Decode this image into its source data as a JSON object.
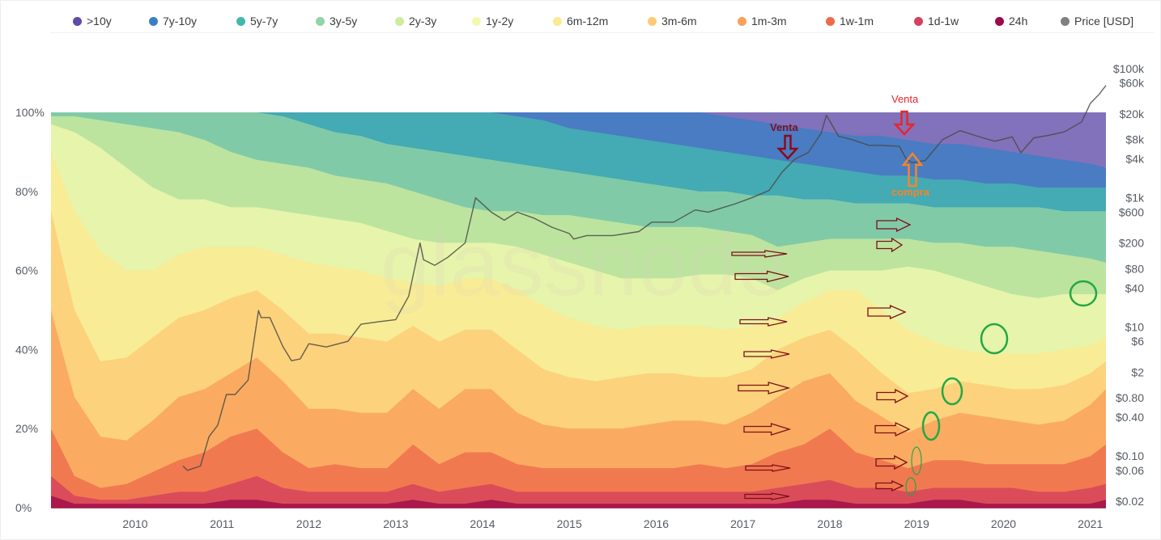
{
  "legend": [
    {
      "label": ">10y",
      "color": "#5d4aa8"
    },
    {
      "label": "7y-10y",
      "color": "#3a7fc4"
    },
    {
      "label": "5y-7y",
      "color": "#42b7ae"
    },
    {
      "label": "3y-5y",
      "color": "#92d4a4"
    },
    {
      "label": "2y-3y",
      "color": "#cdec9c"
    },
    {
      "label": "1y-2y",
      "color": "#f3f8b0"
    },
    {
      "label": "6m-12m",
      "color": "#fde98f"
    },
    {
      "label": "3m-6m",
      "color": "#fccb74"
    },
    {
      "label": "1m-3m",
      "color": "#f9a05a"
    },
    {
      "label": "1w-1m",
      "color": "#ee6a4c"
    },
    {
      "label": "1d-1w",
      "color": "#d5405e"
    },
    {
      "label": "24h",
      "color": "#9c0a48"
    },
    {
      "label": "Price [USD]",
      "color": "#808080"
    }
  ],
  "watermark": "glassnode",
  "chart_data": {
    "type": "area",
    "title": "",
    "xlabel": "",
    "ylabel": "",
    "stacked": true,
    "x_range": [
      2009.03,
      2021.18
    ],
    "y_range_percent": [
      0,
      100
    ],
    "y_ticks": [
      "0%",
      "20%",
      "40%",
      "60%",
      "80%",
      "100%"
    ],
    "x_ticks": [
      "2010",
      "2011",
      "2012",
      "2013",
      "2014",
      "2015",
      "2016",
      "2017",
      "2018",
      "2019",
      "2020",
      "2021"
    ],
    "price_axis": {
      "scale": "log",
      "range_usd": [
        0.02,
        100000
      ],
      "ticks": [
        "$100k",
        "$60k",
        "$20k",
        "$8k",
        "$4k",
        "$1k",
        "$600",
        "$200",
        "$80",
        "$40",
        "$10",
        "$6",
        "$2",
        "$0.80",
        "$0.40",
        "$0.10",
        "$0.06",
        "$0.02"
      ]
    },
    "x": [
      2009.03,
      2009.3,
      2009.6,
      2009.9,
      2010.2,
      2010.5,
      2010.8,
      2011.1,
      2011.4,
      2011.7,
      2012.0,
      2012.3,
      2012.6,
      2012.9,
      2013.2,
      2013.5,
      2013.8,
      2014.1,
      2014.4,
      2014.7,
      2015.0,
      2015.3,
      2015.6,
      2015.9,
      2016.2,
      2016.5,
      2016.8,
      2017.1,
      2017.4,
      2017.7,
      2018.0,
      2018.3,
      2018.6,
      2018.9,
      2019.2,
      2019.5,
      2019.8,
      2020.1,
      2020.4,
      2020.7,
      2021.0,
      2021.18
    ],
    "series_cumulative_top_percent": [
      {
        "name": "24h",
        "values": [
          3,
          1,
          1,
          1,
          1,
          1,
          1,
          2,
          2,
          1,
          1,
          1,
          1,
          1,
          2,
          1,
          1,
          2,
          1,
          1,
          1,
          1,
          1,
          1,
          1,
          1,
          1,
          1,
          1,
          2,
          2,
          1,
          1,
          1,
          2,
          2,
          1,
          1,
          1,
          1,
          1,
          2
        ]
      },
      {
        "name": "1d-1w",
        "values": [
          8,
          3,
          2,
          2,
          3,
          4,
          4,
          6,
          8,
          5,
          4,
          4,
          4,
          4,
          6,
          4,
          5,
          6,
          4,
          4,
          4,
          4,
          4,
          4,
          4,
          4,
          4,
          4,
          5,
          6,
          7,
          5,
          5,
          4,
          5,
          5,
          5,
          5,
          4,
          4,
          5,
          6
        ]
      },
      {
        "name": "1w-1m",
        "values": [
          20,
          8,
          5,
          6,
          9,
          12,
          14,
          18,
          20,
          14,
          10,
          11,
          10,
          10,
          16,
          11,
          14,
          14,
          11,
          10,
          10,
          10,
          10,
          10,
          10,
          11,
          10,
          11,
          14,
          16,
          20,
          14,
          12,
          10,
          12,
          12,
          11,
          11,
          11,
          11,
          13,
          16
        ]
      },
      {
        "name": "1m-3m",
        "values": [
          50,
          28,
          18,
          17,
          22,
          28,
          30,
          34,
          38,
          32,
          25,
          25,
          24,
          24,
          30,
          25,
          30,
          30,
          24,
          21,
          20,
          20,
          20,
          21,
          22,
          22,
          21,
          24,
          28,
          32,
          34,
          27,
          23,
          19,
          22,
          24,
          23,
          22,
          21,
          22,
          26,
          30
        ]
      },
      {
        "name": "3m-6m",
        "values": [
          75,
          50,
          37,
          38,
          43,
          48,
          50,
          53,
          55,
          50,
          44,
          44,
          43,
          42,
          46,
          42,
          45,
          45,
          40,
          35,
          33,
          32,
          33,
          34,
          34,
          33,
          33,
          35,
          40,
          43,
          45,
          40,
          34,
          29,
          30,
          32,
          31,
          30,
          30,
          31,
          34,
          37
        ]
      },
      {
        "name": "6m-12m",
        "values": [
          90,
          75,
          65,
          60,
          60,
          64,
          66,
          66,
          66,
          64,
          62,
          61,
          60,
          58,
          57,
          56,
          58,
          58,
          55,
          51,
          48,
          46,
          45,
          46,
          46,
          46,
          45,
          46,
          48,
          52,
          55,
          55,
          50,
          45,
          42,
          40,
          39,
          39,
          39,
          40,
          41,
          43
        ]
      },
      {
        "name": "1y-2y",
        "values": [
          97,
          95,
          91,
          86,
          81,
          78,
          78,
          76,
          76,
          75,
          74,
          73,
          72,
          70,
          68,
          67,
          67,
          67,
          66,
          64,
          62,
          60,
          58,
          58,
          58,
          59,
          59,
          58,
          55,
          58,
          60,
          60,
          60,
          61,
          60,
          58,
          56,
          54,
          53,
          54,
          54,
          54
        ]
      },
      {
        "name": "2y-3y",
        "values": [
          99,
          99,
          98,
          97,
          96,
          95,
          93,
          90,
          88,
          87,
          86,
          84,
          83,
          82,
          80,
          78,
          76,
          75,
          75,
          74,
          74,
          73,
          72,
          71,
          71,
          71,
          70,
          69,
          66,
          67,
          68,
          68,
          68,
          68,
          67,
          67,
          66,
          66,
          65,
          64,
          63,
          62
        ]
      },
      {
        "name": "3y-5y",
        "values": [
          100,
          100,
          100,
          100,
          100,
          100,
          100,
          100,
          100,
          99,
          97,
          95,
          94,
          92,
          91,
          90,
          89,
          88,
          87,
          86,
          85,
          84,
          83,
          82,
          81,
          80,
          80,
          79,
          79,
          78,
          78,
          77,
          77,
          77,
          76,
          76,
          76,
          76,
          76,
          75,
          75,
          75
        ]
      },
      {
        "name": "5y-7y",
        "values": [
          100,
          100,
          100,
          100,
          100,
          100,
          100,
          100,
          100,
          100,
          100,
          100,
          100,
          100,
          100,
          100,
          100,
          100,
          99,
          98,
          96,
          95,
          94,
          93,
          92,
          91,
          90,
          89,
          88,
          87,
          86,
          85,
          84,
          84,
          83,
          83,
          82,
          82,
          81,
          81,
          81,
          81
        ]
      },
      {
        "name": "7y-10y",
        "values": [
          100,
          100,
          100,
          100,
          100,
          100,
          100,
          100,
          100,
          100,
          100,
          100,
          100,
          100,
          100,
          100,
          100,
          100,
          100,
          100,
          100,
          100,
          100,
          100,
          100,
          100,
          99,
          98,
          97,
          96,
          95,
          94,
          94,
          93,
          92,
          92,
          91,
          90,
          89,
          88,
          87,
          86
        ]
      },
      {
        "name": ">10y",
        "values": [
          100,
          100,
          100,
          100,
          100,
          100,
          100,
          100,
          100,
          100,
          100,
          100,
          100,
          100,
          100,
          100,
          100,
          100,
          100,
          100,
          100,
          100,
          100,
          100,
          100,
          100,
          100,
          100,
          100,
          100,
          100,
          100,
          100,
          100,
          100,
          100,
          100,
          100,
          100,
          100,
          100,
          100
        ]
      }
    ],
    "price_series": {
      "name": "Price [USD]",
      "x": [
        2010.55,
        2010.6,
        2010.75,
        2010.85,
        2010.95,
        2011.05,
        2011.15,
        2011.3,
        2011.42,
        2011.45,
        2011.55,
        2011.7,
        2011.8,
        2011.9,
        2012.0,
        2012.2,
        2012.45,
        2012.6,
        2012.8,
        2013.0,
        2013.15,
        2013.28,
        2013.32,
        2013.45,
        2013.6,
        2013.8,
        2013.92,
        2014.0,
        2014.1,
        2014.25,
        2014.4,
        2014.6,
        2014.8,
        2015.0,
        2015.05,
        2015.2,
        2015.5,
        2015.8,
        2015.95,
        2016.2,
        2016.45,
        2016.6,
        2016.9,
        2017.1,
        2017.3,
        2017.45,
        2017.6,
        2017.75,
        2017.9,
        2017.96,
        2018.1,
        2018.25,
        2018.45,
        2018.6,
        2018.8,
        2018.88,
        2018.95,
        2019.1,
        2019.3,
        2019.5,
        2019.7,
        2019.9,
        2020.1,
        2020.2,
        2020.35,
        2020.5,
        2020.7,
        2020.9,
        2021.0,
        2021.1,
        2021.18
      ],
      "values": [
        0.07,
        0.06,
        0.07,
        0.2,
        0.3,
        0.9,
        0.9,
        1.5,
        18,
        14,
        14,
        5,
        3,
        3.2,
        5.5,
        4.9,
        6,
        11,
        12,
        13,
        30,
        200,
        110,
        90,
        120,
        200,
        1000,
        800,
        600,
        450,
        600,
        480,
        350,
        280,
        230,
        260,
        260,
        300,
        420,
        420,
        650,
        600,
        800,
        1000,
        1300,
        2500,
        4000,
        5000,
        10000,
        19000,
        9000,
        8000,
        6500,
        6500,
        6300,
        4000,
        3500,
        3800,
        8000,
        11000,
        9000,
        7500,
        8800,
        5000,
        8500,
        9200,
        10500,
        15000,
        29000,
        40000,
        55000
      ]
    },
    "annotations": [
      {
        "text": "Venta",
        "x": 2017.5,
        "type": "arrow-down",
        "color": "#8b0a1e"
      },
      {
        "text": "Venta",
        "x": 2018.92,
        "type": "arrow-down",
        "color": "#e8262b"
      },
      {
        "text": "compra",
        "x": 2018.92,
        "type": "arrow-up",
        "color": "#f5852a"
      }
    ]
  }
}
